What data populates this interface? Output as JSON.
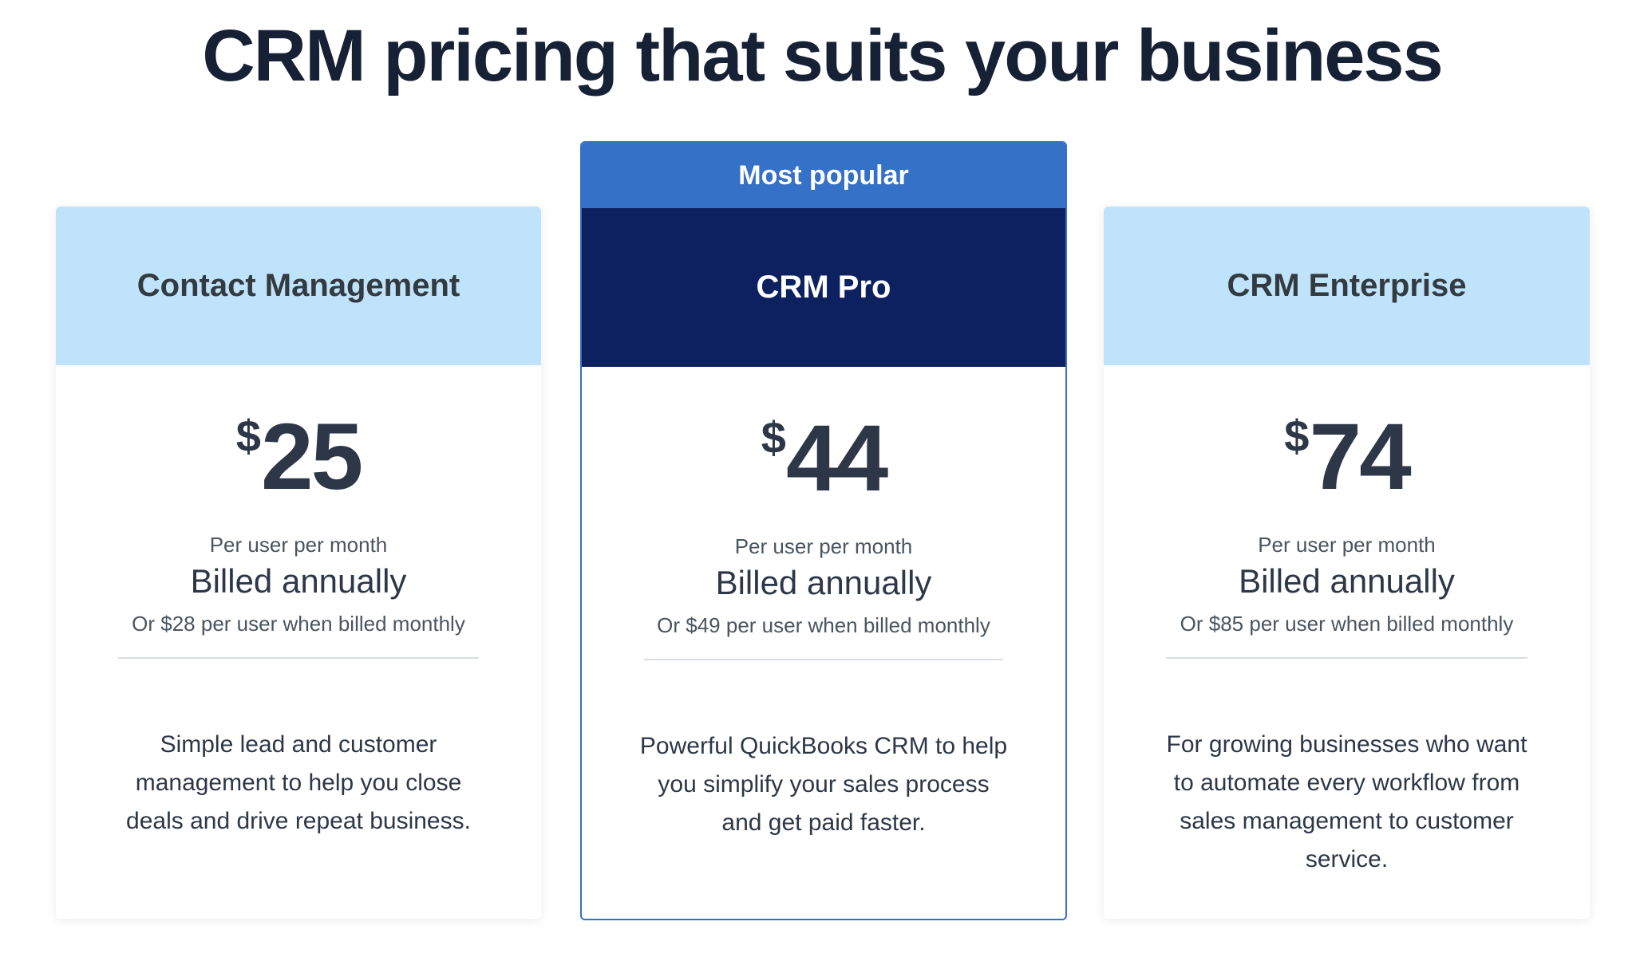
{
  "page_title": "CRM pricing that suits your business",
  "plans": [
    {
      "name": "Contact Management",
      "currency": "$",
      "price": "25",
      "per": "Per user per month",
      "billing": "Billed annually",
      "monthly_note": "Or $28 per user when billed monthly",
      "description": "Simple lead and customer management to help you close deals and drive repeat business."
    },
    {
      "badge": "Most popular",
      "name": "CRM Pro",
      "currency": "$",
      "price": "44",
      "per": "Per user per month",
      "billing": "Billed annually",
      "monthly_note": "Or $49 per user when billed monthly",
      "description": "Powerful QuickBooks CRM to help you simplify your sales process and get paid faster."
    },
    {
      "name": "CRM Enterprise",
      "currency": "$",
      "price": "74",
      "per": "Per user per month",
      "billing": "Billed annually",
      "monthly_note": "Or $85 per user when billed monthly",
      "description": "For growing businesses who want to automate every workflow from sales management to customer service."
    }
  ],
  "colors": {
    "badge": "#3571c6",
    "featured_header": "#0d2161",
    "header": "#bfe3fa"
  }
}
